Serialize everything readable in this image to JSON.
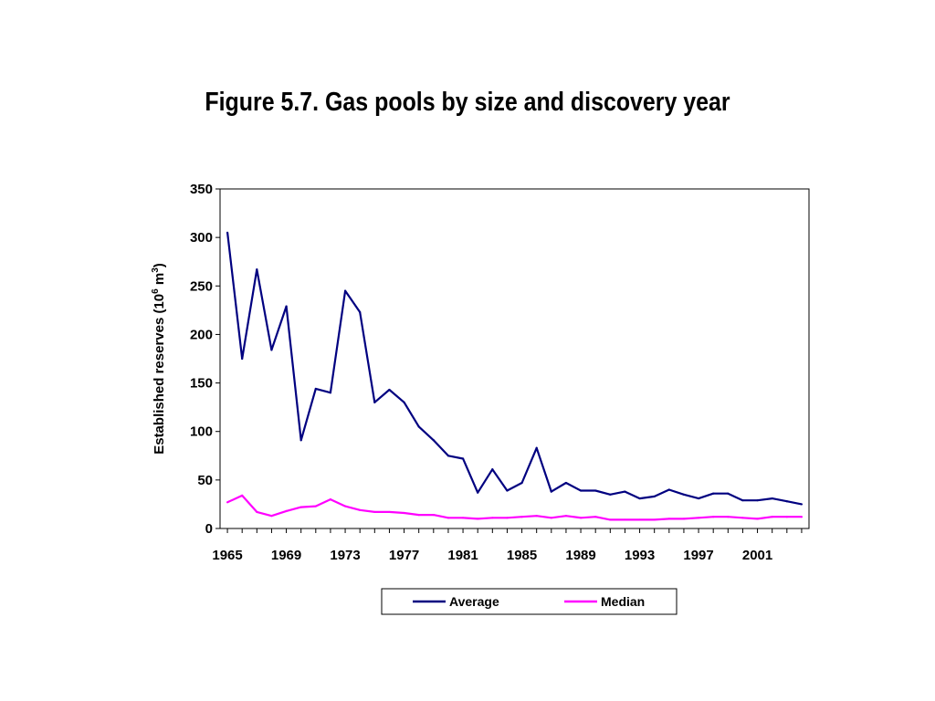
{
  "chart_data": {
    "type": "line",
    "title": "Figure 5.7. Gas pools by size and discovery year",
    "ylabel": "Established reserves (10⁶ m³)",
    "ylabel_parts": {
      "prefix": "Established reserves (10",
      "sup1": "6",
      "middle": " m",
      "sup2": "3",
      "suffix": ")"
    },
    "xlabel": "",
    "ylim": [
      0,
      350
    ],
    "yticks": [
      0,
      50,
      100,
      150,
      200,
      250,
      300,
      350
    ],
    "xlim": [
      1964.5,
      2004.5
    ],
    "xtick_labels": [
      1965,
      1969,
      1973,
      1977,
      1981,
      1985,
      1989,
      1993,
      1997,
      2001
    ],
    "grid": false,
    "legend_position": "bottom",
    "x": [
      1965,
      1966,
      1967,
      1968,
      1969,
      1970,
      1971,
      1972,
      1973,
      1974,
      1975,
      1976,
      1977,
      1978,
      1979,
      1980,
      1981,
      1982,
      1983,
      1984,
      1985,
      1986,
      1987,
      1988,
      1989,
      1990,
      1991,
      1992,
      1993,
      1994,
      1995,
      1996,
      1997,
      1998,
      1999,
      2000,
      2001,
      2002,
      2003,
      2004
    ],
    "series": [
      {
        "name": "Average",
        "color": "#000080",
        "values": [
          305,
          175,
          267,
          184,
          229,
          91,
          144,
          140,
          245,
          223,
          130,
          143,
          130,
          105,
          91,
          75,
          72,
          37,
          61,
          39,
          47,
          83,
          38,
          47,
          39,
          39,
          35,
          38,
          31,
          33,
          40,
          35,
          31,
          36,
          36,
          29,
          29,
          31,
          28,
          25
        ]
      },
      {
        "name": "Median",
        "color": "#ff00ff",
        "values": [
          27,
          34,
          17,
          13,
          18,
          22,
          23,
          30,
          23,
          19,
          17,
          17,
          16,
          14,
          14,
          11,
          11,
          10,
          11,
          11,
          12,
          13,
          11,
          13,
          11,
          12,
          9,
          9,
          9,
          9,
          10,
          10,
          11,
          12,
          12,
          11,
          10,
          12,
          12,
          12
        ]
      }
    ]
  }
}
